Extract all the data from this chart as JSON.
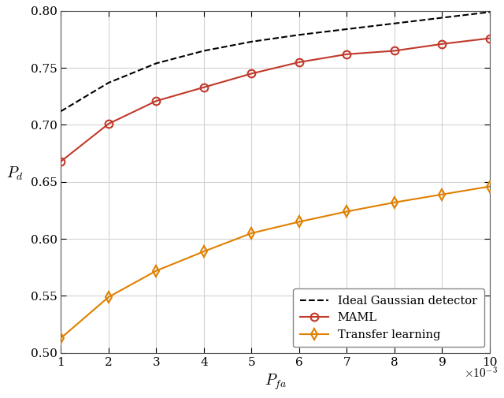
{
  "x": [
    0.001,
    0.002,
    0.003,
    0.004,
    0.005,
    0.006,
    0.007,
    0.008,
    0.009,
    0.01
  ],
  "ideal_gaussian": [
    0.712,
    0.737,
    0.754,
    0.765,
    0.773,
    0.779,
    0.784,
    0.789,
    0.794,
    0.799
  ],
  "maml": [
    0.668,
    0.701,
    0.721,
    0.733,
    0.745,
    0.755,
    0.762,
    0.765,
    0.771,
    0.776
  ],
  "transfer_learning": [
    0.513,
    0.549,
    0.572,
    0.589,
    0.605,
    0.615,
    0.624,
    0.632,
    0.639,
    0.646
  ],
  "ideal_color": "#000000",
  "maml_color": "#C0392B",
  "transfer_color": "#E08000",
  "xlabel": "$P_{fa}$",
  "ylabel": "$P_d$",
  "legend_labels": [
    "Ideal Gaussian detector",
    "MAML",
    "Transfer learning"
  ],
  "xlim": [
    0.001,
    0.01
  ],
  "ylim": [
    0.5,
    0.8
  ],
  "yticks": [
    0.5,
    0.55,
    0.6,
    0.65,
    0.7,
    0.75,
    0.8
  ],
  "xticks": [
    0.001,
    0.002,
    0.003,
    0.004,
    0.005,
    0.006,
    0.007,
    0.008,
    0.009,
    0.01
  ],
  "xtick_labels": [
    "1",
    "2",
    "3",
    "4",
    "5",
    "6",
    "7",
    "8",
    "9",
    "10"
  ],
  "figsize": [
    6.4,
    5.05
  ],
  "dpi": 100
}
